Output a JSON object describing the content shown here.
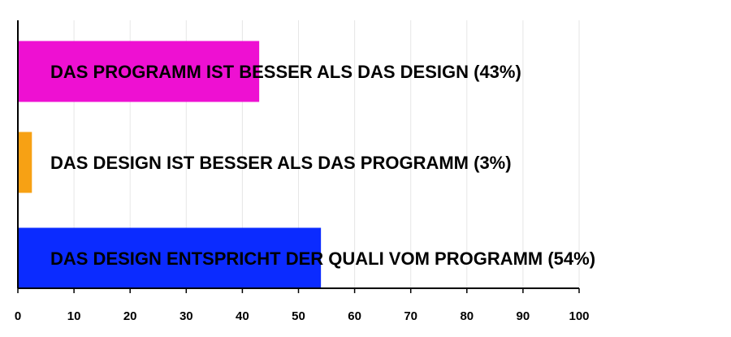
{
  "chart_data": {
    "type": "barh",
    "categories": [
      "DAS PROGRAMM IST BESSER ALS DAS DESIGN (43%)",
      "DAS DESIGN IST BESSER ALS DAS PROGRAMM (3%)",
      "DAS DESIGN ENTSPRICHT DER QUALI VOM PROGRAMM (54%)"
    ],
    "values": [
      43,
      2.5,
      54
    ],
    "colors": [
      "#ee10d2",
      "#f7a114",
      "#0b2bff"
    ],
    "xlim": [
      0,
      100
    ],
    "xticks": [
      0,
      10,
      20,
      30,
      40,
      50,
      60,
      70,
      80,
      90,
      100
    ],
    "grid": true
  }
}
